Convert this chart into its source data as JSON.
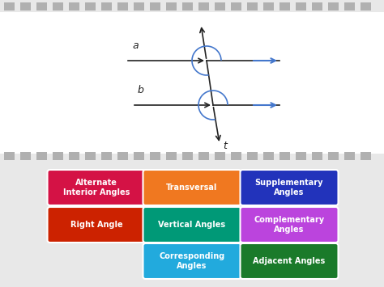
{
  "bg_color": "#e8e8e8",
  "diagram_bg": "#ffffff",
  "stripe_color": "#b0b0b0",
  "boxes": [
    {
      "text": "Alternate\nInterior Angles",
      "color": "#d41245",
      "row": 0,
      "col": 0
    },
    {
      "text": "Transversal",
      "color": "#f07820",
      "row": 0,
      "col": 1
    },
    {
      "text": "Supplementary\nAngles",
      "color": "#2233bb",
      "row": 0,
      "col": 2
    },
    {
      "text": "Right Angle",
      "color": "#cc2200",
      "row": 1,
      "col": 0
    },
    {
      "text": "Vertical Angles",
      "color": "#009977",
      "row": 1,
      "col": 1
    },
    {
      "text": "Complementary\nAngles",
      "color": "#bb44dd",
      "row": 1,
      "col": 2
    },
    {
      "text": "Corresponding\nAngles",
      "color": "#22aadd",
      "row": 2,
      "col": 1
    },
    {
      "text": "Adjacent Angles",
      "color": "#1a7a2a",
      "row": 2,
      "col": 2
    }
  ],
  "line_color": "#222222",
  "angle_color": "#4477cc",
  "arrow_color": "#4477cc",
  "label_a": "a",
  "label_b": "b",
  "label_t": "t"
}
